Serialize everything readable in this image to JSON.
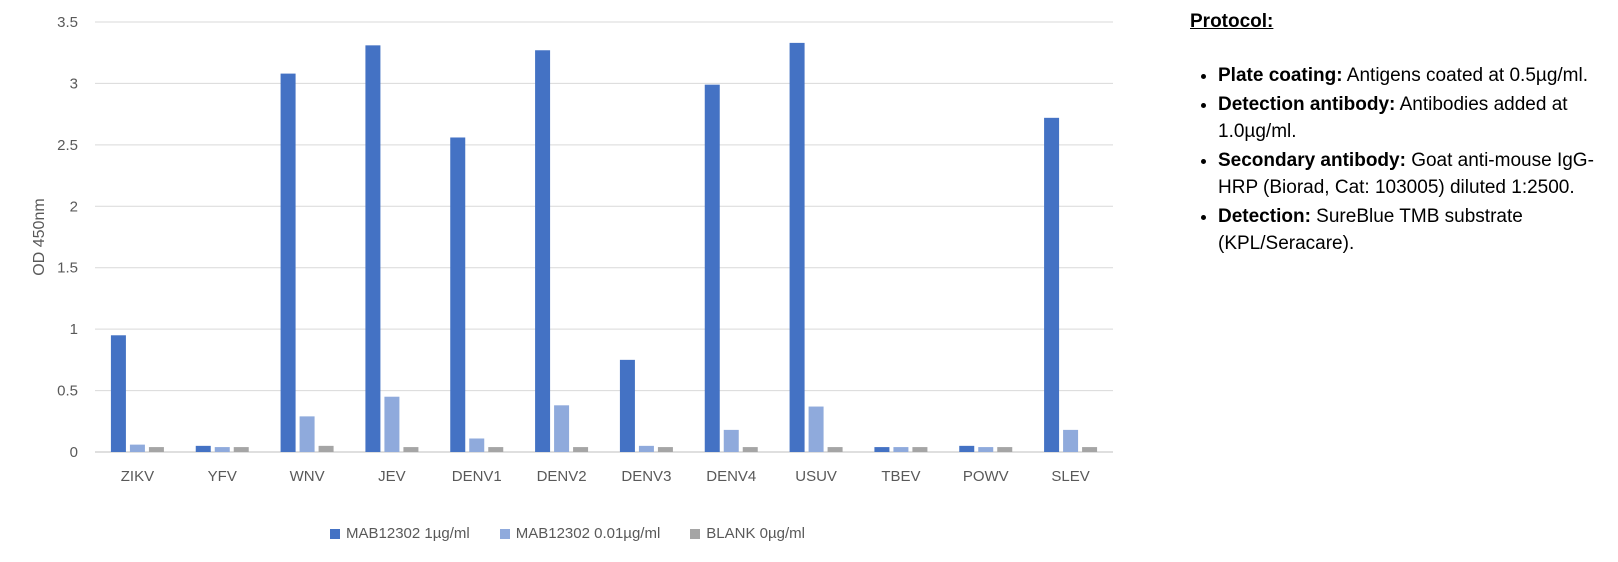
{
  "chart_data": {
    "type": "bar",
    "categories": [
      "ZIKV",
      "YFV",
      "WNV",
      "JEV",
      "DENV1",
      "DENV2",
      "DENV3",
      "DENV4",
      "USUV",
      "TBEV",
      "POWV",
      "SLEV"
    ],
    "series": [
      {
        "name": "MAB12302 1µg/ml",
        "color": "#4472C4",
        "values": [
          0.95,
          0.05,
          3.08,
          3.31,
          2.56,
          3.27,
          0.75,
          2.99,
          3.33,
          0.04,
          0.05,
          2.72
        ]
      },
      {
        "name": "MAB12302 0.01µg/ml",
        "color": "#8FAADC",
        "values": [
          0.06,
          0.04,
          0.29,
          0.45,
          0.11,
          0.38,
          0.05,
          0.18,
          0.37,
          0.04,
          0.04,
          0.18
        ]
      },
      {
        "name": "BLANK 0µg/ml",
        "color": "#A5A5A5",
        "values": [
          0.04,
          0.04,
          0.05,
          0.04,
          0.04,
          0.04,
          0.04,
          0.04,
          0.04,
          0.04,
          0.04,
          0.04
        ]
      }
    ],
    "ylabel": "OD 450nm",
    "xlabel": "",
    "ylim": [
      0,
      3.5
    ],
    "yticks": [
      0,
      0.5,
      1,
      1.5,
      2,
      2.5,
      3,
      3.5
    ],
    "ytick_labels": [
      "0",
      "0.5",
      "1",
      "1.5",
      "2",
      "2.5",
      "3",
      "3.5"
    ],
    "grid": true,
    "legend_position": "bottom"
  },
  "protocol": {
    "title": "Protocol:",
    "items": [
      {
        "label": "Plate coating:",
        "text": " Antigens coated at 0.5µg/ml."
      },
      {
        "label": "Detection antibody:",
        "text": " Antibodies added at 1.0µg/ml."
      },
      {
        "label": "Secondary antibody:",
        "text": " Goat anti-mouse IgG-HRP (Biorad, Cat: 103005) diluted 1:2500."
      },
      {
        "label": "Detection:",
        "text": " SureBlue TMB substrate (KPL/Seracare)."
      }
    ]
  }
}
